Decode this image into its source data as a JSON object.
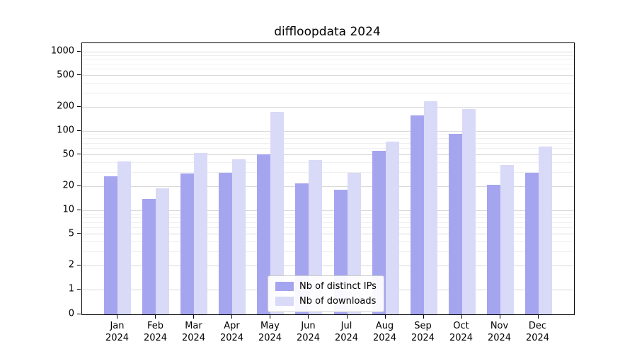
{
  "chart_data": {
    "type": "bar",
    "title": "diffloopdata 2024",
    "year_label": "2024",
    "categories": [
      "Jan",
      "Feb",
      "Mar",
      "Apr",
      "May",
      "Jun",
      "Jul",
      "Aug",
      "Sep",
      "Oct",
      "Nov",
      "Dec"
    ],
    "series": [
      {
        "name": "Nb of distinct IPs",
        "color": "#a5a5ef",
        "values": [
          27,
          14,
          29,
          30,
          51,
          22,
          18,
          56,
          158,
          93,
          21,
          30
        ]
      },
      {
        "name": "Nb of downloads",
        "color": "#d9d9f8",
        "values": [
          41,
          19,
          53,
          44,
          175,
          43,
          30,
          73,
          235,
          188,
          37,
          63
        ]
      }
    ],
    "y_ticks": [
      0,
      1,
      2,
      5,
      10,
      20,
      50,
      100,
      200,
      500,
      1000
    ],
    "y_scale": "symlog",
    "ylim": [
      0,
      1280
    ],
    "grid": true,
    "legend_position": "lower center",
    "style": {
      "grid_major_color": "#d9d9d9",
      "grid_minor_color": "#efefef",
      "axis_color": "#000000",
      "background_color": "#ffffff"
    }
  }
}
